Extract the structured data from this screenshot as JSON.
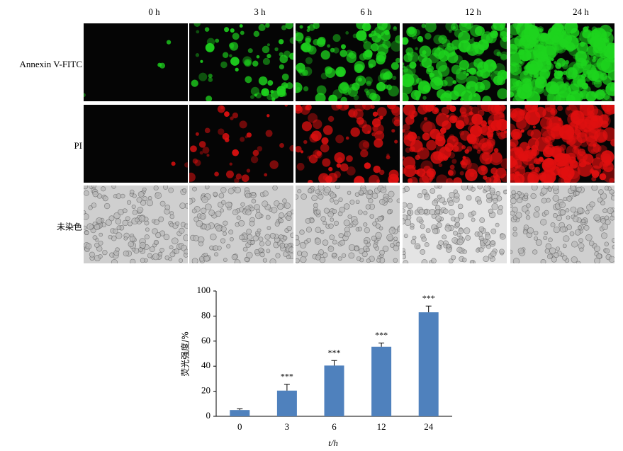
{
  "figure": {
    "columns": [
      "0 h",
      "3 h",
      "6 h",
      "12 h",
      "24 h"
    ],
    "rows": [
      "Annexin V-FITC",
      "PI",
      "未染色"
    ]
  },
  "chart_data": {
    "type": "bar",
    "y_label": "荧光强度/%",
    "x_label": "t/h",
    "categories": [
      "0",
      "3",
      "6",
      "12",
      "24"
    ],
    "values": [
      5,
      20.5,
      40.5,
      55.5,
      83
    ],
    "errors": [
      1,
      5,
      4,
      3,
      5
    ],
    "annotations": [
      null,
      "***",
      "***",
      "***",
      "***"
    ],
    "color": "#4f81bd",
    "ylim": [
      0,
      100
    ],
    "yticks": [
      0,
      20,
      40,
      60,
      80,
      100
    ],
    "grid": false
  }
}
